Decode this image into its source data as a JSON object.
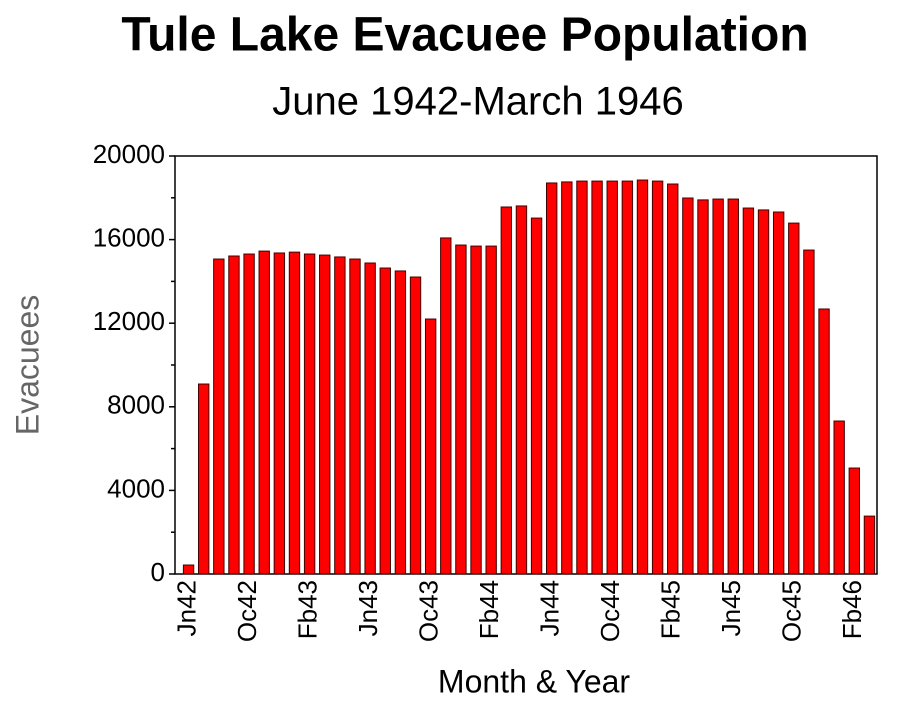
{
  "chart_data": {
    "type": "bar",
    "title": "Tule Lake Evacuee Population",
    "subtitle": "June 1942-March 1946",
    "x_label": "Month & Year",
    "y_label": "Evacuees",
    "categories": [
      "Jn42",
      null,
      null,
      null,
      "Oc42",
      null,
      null,
      null,
      "Fb43",
      null,
      null,
      null,
      "Jn43",
      null,
      null,
      null,
      "Oc43",
      null,
      null,
      null,
      "Fb44",
      null,
      null,
      null,
      "Jn44",
      null,
      null,
      null,
      "Oc44",
      null,
      null,
      null,
      "Fb45",
      null,
      null,
      null,
      "Jn45",
      null,
      null,
      null,
      "Oc45",
      null,
      null,
      null,
      "Fb46",
      null
    ],
    "values": [
      430,
      9090,
      15070,
      15215,
      15310,
      15450,
      15360,
      15400,
      15310,
      15260,
      15170,
      15070,
      14880,
      14640,
      14500,
      14210,
      12200,
      16080,
      15740,
      15690,
      15690,
      17560,
      17610,
      17030,
      18710,
      18760,
      18800,
      18800,
      18800,
      18800,
      18850,
      18800,
      18660,
      17990,
      17900,
      17940,
      17940,
      17510,
      17420,
      17320,
      16790,
      15500,
      12680,
      7320,
      5070,
      2770
    ],
    "color": "#ff0000",
    "ylim": [
      0,
      20000
    ],
    "yticks": [
      0,
      4000,
      8000,
      12000,
      16000,
      20000
    ],
    "yminor_ticks": [
      2000,
      6000,
      10000,
      14000,
      18000
    ],
    "grid": false
  }
}
